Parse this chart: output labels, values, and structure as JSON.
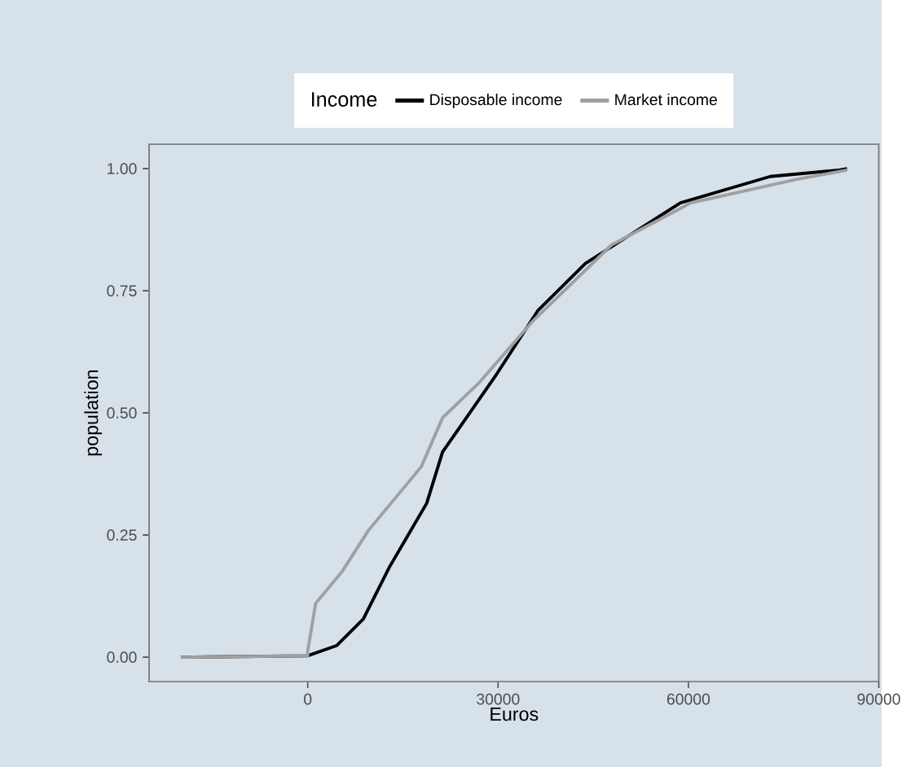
{
  "chart_data": {
    "type": "line",
    "xlabel": "Euros",
    "ylabel": "population",
    "legend_title": "Income",
    "xlim": [
      -25000,
      90000
    ],
    "ylim": [
      -0.05,
      1.05
    ],
    "xticks": [
      0,
      30000,
      60000,
      90000
    ],
    "yticks": [
      {
        "value": 0,
        "label": "0.00"
      },
      {
        "value": 0.25,
        "label": "0.25"
      },
      {
        "value": 0.5,
        "label": "0.50"
      },
      {
        "value": 0.75,
        "label": "0.75"
      },
      {
        "value": 1,
        "label": "1.00"
      }
    ],
    "grid": false,
    "legend": "top",
    "marker": "none",
    "line_style": "solid",
    "series": [
      {
        "name": "Disposable income",
        "color": "#000000",
        "x": [
          -20000,
          0,
          4600,
          8750,
          12900,
          18750,
          21250,
          29500,
          36250,
          43750,
          58750,
          72900,
          83750,
          85000
        ],
        "values": [
          0,
          0.003,
          0.024,
          0.078,
          0.185,
          0.315,
          0.42,
          0.574,
          0.709,
          0.806,
          0.93,
          0.984,
          0.997,
          1
        ]
      },
      {
        "name": "Market income",
        "color": "#a0a0a0",
        "x": [
          -20000,
          0,
          0,
          1250,
          5400,
          9600,
          17900,
          21250,
          27100,
          35400,
          47900,
          60400,
          77000,
          85000
        ],
        "values": [
          0,
          0.003,
          0.013,
          0.11,
          0.175,
          0.26,
          0.39,
          0.49,
          0.563,
          0.687,
          0.844,
          0.93,
          0.978,
          0.997
        ]
      }
    ]
  }
}
